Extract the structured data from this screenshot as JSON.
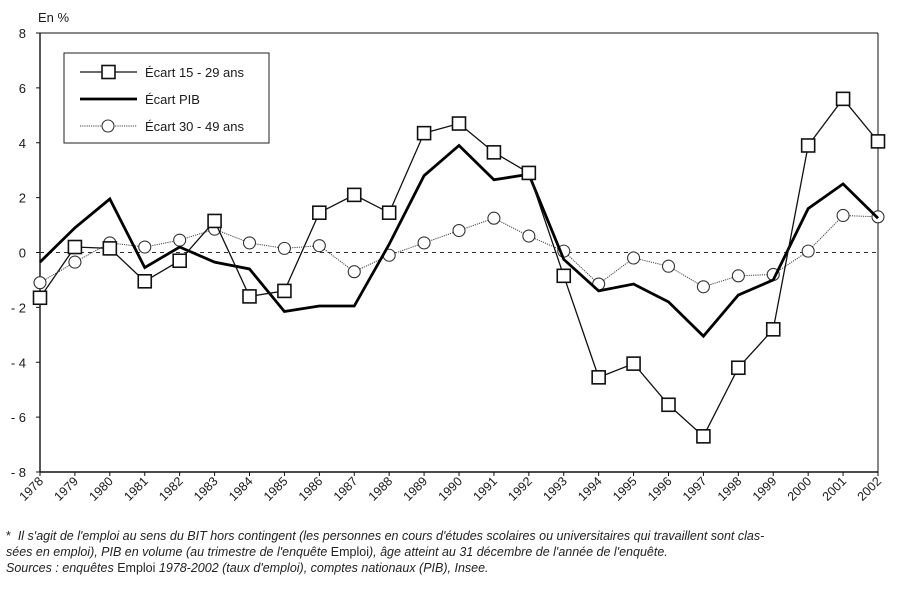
{
  "chart_data": {
    "type": "line",
    "title": "",
    "ylabel": "En %",
    "xlabel": "",
    "ylim": [
      -8,
      8
    ],
    "yticks": [
      8,
      6,
      4,
      2,
      0,
      -2,
      -4,
      -6,
      -8
    ],
    "ytick_labels": [
      "8",
      "6",
      "4",
      "2",
      "0",
      "- 2",
      "- 4",
      "- 6",
      "- 8"
    ],
    "grid": false,
    "zero_line": "dashed",
    "legend_position": "top-left",
    "x": [
      "1978",
      "1979",
      "1980",
      "1981",
      "1982",
      "1983",
      "1984",
      "1985",
      "1986",
      "1987",
      "1988",
      "1989",
      "1990",
      "1991",
      "1992",
      "1993",
      "1994",
      "1995",
      "1996",
      "1997",
      "1998",
      "1999",
      "2000",
      "2001",
      "2002"
    ],
    "series": [
      {
        "name": "Écart 15 - 29 ans",
        "marker": "square",
        "style": "solid-thin",
        "values": [
          -1.65,
          0.2,
          0.15,
          -1.05,
          -0.3,
          1.15,
          -1.6,
          -1.4,
          1.45,
          2.1,
          1.45,
          4.35,
          4.7,
          3.65,
          2.9,
          -0.85,
          -4.55,
          -4.05,
          -5.55,
          -6.7,
          -4.2,
          -2.8,
          3.9,
          5.6,
          4.05
        ]
      },
      {
        "name": "Écart PIB",
        "marker": "none",
        "style": "solid-thick",
        "values": [
          -0.35,
          0.9,
          1.95,
          -0.55,
          0.2,
          -0.35,
          -0.6,
          -2.15,
          -1.95,
          -1.95,
          0.3,
          2.8,
          3.9,
          2.65,
          2.85,
          -0.25,
          -1.4,
          -1.15,
          -1.8,
          -3.05,
          -1.55,
          -1.0,
          1.6,
          2.5,
          1.25
        ]
      },
      {
        "name": "Écart 30 - 49 ans",
        "marker": "circle",
        "style": "dotted-thin",
        "values": [
          -1.1,
          -0.35,
          0.35,
          0.2,
          0.45,
          0.85,
          0.35,
          0.15,
          0.25,
          -0.7,
          -0.1,
          0.35,
          0.8,
          1.25,
          0.6,
          0.05,
          -1.15,
          -0.2,
          -0.5,
          -1.25,
          -0.85,
          -0.8,
          0.05,
          1.35,
          1.3
        ]
      }
    ]
  },
  "footnote": {
    "line1_italic": "Il s'agit de l'emploi au sens du BIT hors contingent (les personnes en cours d'études scolaires ou universitaires qui travaillent sont clas-",
    "line2_italic_a": "sées en emploi), PIB en volume (au trimestre de l'enquête ",
    "line2_upright": "Emploi",
    "line2_italic_b": "), âge atteint au 31 décembre de l'année de l'enquête.",
    "line3_italic_a": "Sources : enquêtes ",
    "line3_upright": "Emploi",
    "line3_italic_b": " 1978-2002 (taux d'emploi), comptes nationaux (PIB), Insee.",
    "marker": "*"
  }
}
